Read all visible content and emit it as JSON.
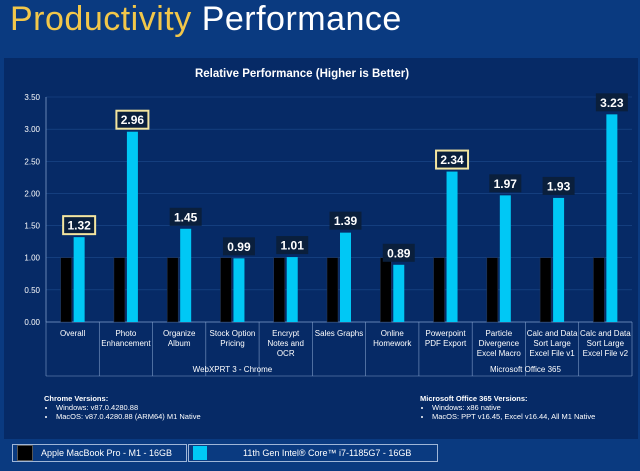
{
  "page": {
    "title_part1": "Productivity",
    "title_part2": "Performance"
  },
  "colors": {
    "m1": "#000000",
    "intel": "#00c8f5",
    "highlight": "#f3e5a0",
    "label_bg": "#0a1f3c"
  },
  "chart_data": {
    "type": "bar",
    "title": "Relative Performance (Higher is Better)",
    "categories": [
      "Overall",
      "Photo Enhancement",
      "Organize Album",
      "Stock Option Pricing",
      "Encrypt Notes and OCR",
      "Sales Graphs",
      "Online Homework",
      "Powerpoint PDF Export",
      "Particle Divergence Excel Macro",
      "Calc and Data Sort Large Excel File v1",
      "Calc and Data Sort Large Excel File v2"
    ],
    "category_lines": [
      [
        "Overall"
      ],
      [
        "Photo",
        "Enhancement"
      ],
      [
        "Organize",
        "Album"
      ],
      [
        "Stock Option",
        "Pricing"
      ],
      [
        "Encrypt",
        "Notes and",
        "OCR"
      ],
      [
        "Sales Graphs"
      ],
      [
        "Online",
        "Homework"
      ],
      [
        "Powerpoint",
        "PDF Export"
      ],
      [
        "Particle",
        "Divergence",
        "Excel Macro"
      ],
      [
        "Calc and Data",
        "Sort Large",
        "Excel File v1"
      ],
      [
        "Calc and Data",
        "Sort Large",
        "Excel File v2"
      ]
    ],
    "series": [
      {
        "name": "Apple MacBook Pro - M1 - 16GB",
        "values": [
          1,
          1,
          1,
          1,
          1,
          1,
          1,
          1,
          1,
          1,
          1
        ]
      },
      {
        "name": "11th Gen Intel® Core™ i7-1185G7 - 16GB",
        "values": [
          1.32,
          2.96,
          1.45,
          0.99,
          1.01,
          1.39,
          0.89,
          2.34,
          1.97,
          1.93,
          3.23
        ]
      }
    ],
    "data_labels": [
      "1.32",
      "2.96",
      "1.45",
      "0.99",
      "1.01",
      "1.39",
      "0.89",
      "2.34",
      "1.97",
      "1.93",
      "3.23"
    ],
    "highlighted": [
      0,
      1,
      7
    ],
    "ylim": [
      0,
      3.5
    ],
    "yticks": [
      "0.00",
      "0.50",
      "1.00",
      "1.50",
      "2.00",
      "2.50",
      "3.00",
      "3.50"
    ],
    "groups": [
      {
        "label": "WebXPRT 3 - Chrome",
        "from": 0,
        "to": 6
      },
      {
        "label": "Microsoft Office 365",
        "from": 7,
        "to": 10
      }
    ]
  },
  "notes": {
    "chrome": {
      "heading": "Chrome Versions:",
      "items": [
        "Windows: v87.0.4280.88",
        "MacOS: v87.0.4280.88 (ARM64) M1 Native"
      ]
    },
    "office": {
      "heading": "Microsoft Office 365 Versions:",
      "items": [
        "Windows: x86 native",
        "MacOS: PPT v16.45, Excel v16.44, All M1 Native"
      ]
    }
  },
  "legend": {
    "m1": "Apple MacBook Pro - M1 - 16GB",
    "intel": "11th Gen Intel® Core™ i7-1185G7 - 16GB"
  }
}
